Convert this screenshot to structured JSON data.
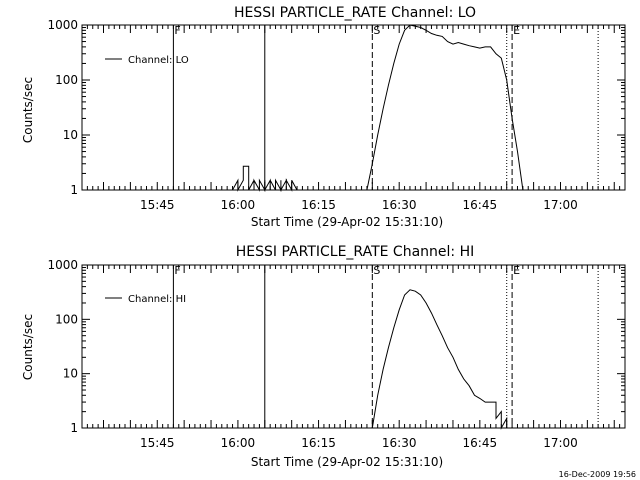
{
  "footer": {
    "timestamp": "16-Dec-2009 19:56"
  },
  "chart_data": [
    {
      "type": "line",
      "title": "HESSI PARTICLE_RATE Channel: LO",
      "xlabel": "Start Time (29-Apr-02 15:31:10)",
      "ylabel": "Counts/sec",
      "x_unit": "minutes",
      "xlim": [
        "15:31",
        "17:12"
      ],
      "ylim": [
        1,
        1000
      ],
      "yscale": "log",
      "xticks": [
        "15:45",
        "16:00",
        "16:15",
        "16:30",
        "16:45",
        "17:00"
      ],
      "yticks": [
        "1",
        "10",
        "100",
        "1000"
      ],
      "legend": {
        "label": "Channel: LO",
        "position": "upper-left"
      },
      "markers": [
        {
          "time": "15:48",
          "label": "F",
          "style": "solid"
        },
        {
          "time": "16:05",
          "label": "",
          "style": "solid"
        },
        {
          "time": "16:25",
          "label": "S",
          "style": "dashed"
        },
        {
          "time": "16:50",
          "label": "",
          "style": "dotted"
        },
        {
          "time": "16:51",
          "label": "E",
          "style": "dashed"
        },
        {
          "time": "17:07",
          "label": "",
          "style": "dotted"
        }
      ],
      "series": [
        {
          "times": [
            "15:59",
            "16:00",
            "16:00",
            "16:01",
            "16:01",
            "16:02",
            "16:02",
            "16:02",
            "16:03",
            "16:03",
            "16:03",
            "16:04",
            "16:04",
            "16:05",
            "16:05",
            "16:05",
            "16:06",
            "16:06",
            "16:06",
            "16:07",
            "16:07",
            "16:08",
            "16:08",
            "16:08",
            "16:09",
            "16:09",
            "16:09",
            "16:10",
            "16:10",
            "16:11"
          ],
          "values": [
            1,
            1.5,
            1,
            1.5,
            2.7,
            2.7,
            1.5,
            1,
            1.5,
            1,
            1.5,
            1,
            1.5,
            1,
            1.5,
            1,
            1.5,
            1,
            1.5,
            1,
            1.5,
            1,
            1.5,
            1,
            1.5,
            1,
            1.5,
            1,
            1.5,
            1
          ]
        },
        {
          "times": [
            "16:24",
            "16:25",
            "16:26",
            "16:27",
            "16:28",
            "16:29",
            "16:30",
            "16:31",
            "16:32",
            "16:33",
            "16:34",
            "16:35",
            "16:36",
            "16:37",
            "16:38",
            "16:39",
            "16:40",
            "16:41",
            "16:42",
            "16:43",
            "16:44",
            "16:45",
            "16:46",
            "16:47",
            "16:48",
            "16:49",
            "16:50",
            "16:51",
            "16:52",
            "16:53"
          ],
          "values": [
            1,
            3,
            10,
            30,
            80,
            200,
            450,
            800,
            1000,
            950,
            900,
            800,
            700,
            650,
            620,
            500,
            450,
            480,
            450,
            420,
            400,
            380,
            400,
            400,
            300,
            250,
            100,
            20,
            5,
            1
          ]
        }
      ]
    },
    {
      "type": "line",
      "title": "HESSI PARTICLE_RATE Channel: HI",
      "xlabel": "Start Time (29-Apr-02 15:31:10)",
      "ylabel": "Counts/sec",
      "x_unit": "minutes",
      "xlim": [
        "15:31",
        "17:12"
      ],
      "ylim": [
        1,
        1000
      ],
      "yscale": "log",
      "xticks": [
        "15:45",
        "16:00",
        "16:15",
        "16:30",
        "16:45",
        "17:00"
      ],
      "yticks": [
        "1",
        "10",
        "100",
        "1000"
      ],
      "legend": {
        "label": "Channel: HI",
        "position": "upper-left"
      },
      "markers": [
        {
          "time": "15:48",
          "label": "F",
          "style": "solid"
        },
        {
          "time": "16:05",
          "label": "",
          "style": "solid"
        },
        {
          "time": "16:25",
          "label": "S",
          "style": "dashed"
        },
        {
          "time": "16:50",
          "label": "",
          "style": "dotted"
        },
        {
          "time": "16:51",
          "label": "E",
          "style": "dashed"
        },
        {
          "time": "17:07",
          "label": "",
          "style": "dotted"
        }
      ],
      "series": [
        {
          "times": [
            "16:25",
            "16:26",
            "16:27",
            "16:28",
            "16:29",
            "16:30",
            "16:31",
            "16:32",
            "16:33",
            "16:34",
            "16:35",
            "16:36",
            "16:37",
            "16:38",
            "16:39",
            "16:40",
            "16:41",
            "16:42",
            "16:43",
            "16:44",
            "16:45",
            "16:46",
            "16:47",
            "16:48",
            "16:48",
            "16:49",
            "16:49",
            "16:50",
            "16:50"
          ],
          "values": [
            1,
            4,
            12,
            30,
            70,
            150,
            280,
            350,
            330,
            280,
            200,
            130,
            80,
            50,
            30,
            20,
            12,
            8,
            6,
            4,
            3.5,
            3,
            3,
            3,
            1.5,
            2,
            1,
            1.5,
            1
          ]
        }
      ]
    }
  ]
}
